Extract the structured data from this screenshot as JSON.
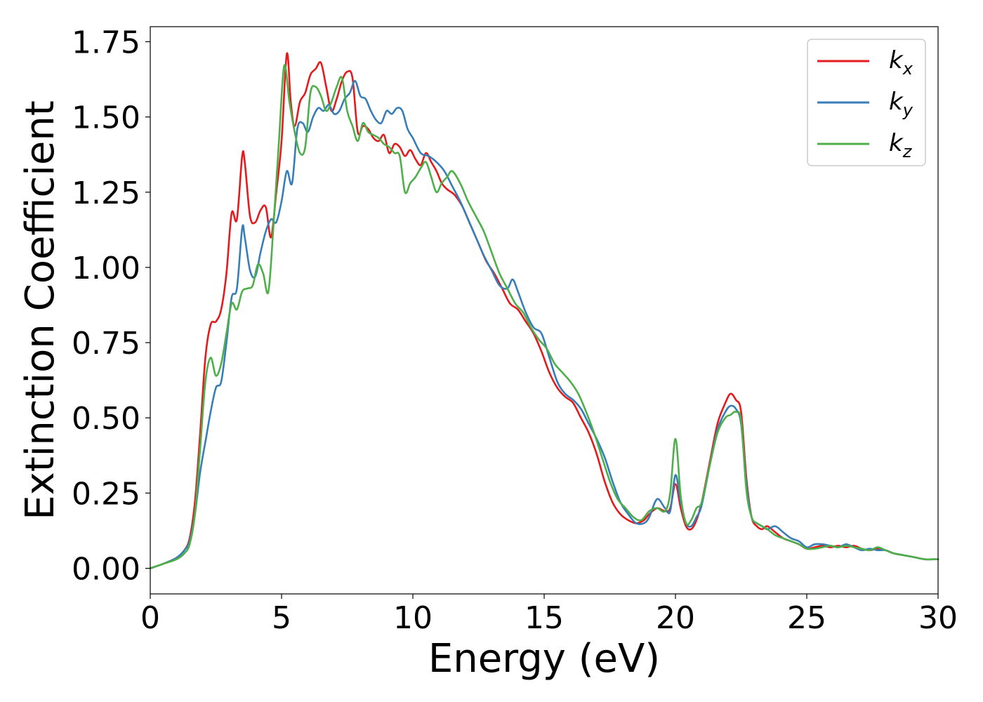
{
  "chart_data": {
    "type": "line",
    "title": "",
    "xlabel": "Energy (eV)",
    "ylabel": "Extinction Coefficient",
    "xlim": [
      0,
      30
    ],
    "ylim": [
      -0.085,
      1.8
    ],
    "xticks": [
      "0",
      "5",
      "10",
      "15",
      "20",
      "25",
      "30"
    ],
    "yticks": [
      "0.00",
      "0.25",
      "0.50",
      "0.75",
      "1.00",
      "1.25",
      "1.50",
      "1.75"
    ],
    "grid": false,
    "legend_position": "top-right",
    "series": [
      {
        "name": "k_x",
        "legend_base": "k",
        "legend_sub": "x",
        "color": "#e41a1c",
        "x": [
          0,
          0.5,
          1.0,
          1.3,
          1.5,
          1.7,
          1.9,
          2.1,
          2.3,
          2.5,
          2.7,
          2.9,
          3.1,
          3.3,
          3.5,
          3.6,
          3.8,
          4.0,
          4.2,
          4.4,
          4.6,
          4.8,
          5.0,
          5.2,
          5.35,
          5.5,
          5.7,
          5.9,
          6.1,
          6.3,
          6.5,
          6.7,
          6.9,
          7.1,
          7.3,
          7.5,
          7.7,
          7.9,
          8.1,
          8.3,
          8.5,
          8.7,
          8.9,
          9.1,
          9.3,
          9.5,
          9.7,
          9.9,
          10.1,
          10.3,
          10.5,
          10.7,
          10.9,
          11.1,
          11.3,
          11.6,
          11.9,
          12.2,
          12.5,
          12.8,
          13.1,
          13.4,
          13.7,
          14.0,
          14.3,
          14.6,
          14.9,
          15.2,
          15.5,
          15.8,
          16.1,
          16.4,
          16.7,
          17.0,
          17.3,
          17.6,
          17.9,
          18.2,
          18.5,
          18.8,
          19.0,
          19.3,
          19.6,
          19.8,
          20.0,
          20.2,
          20.4,
          20.6,
          20.8,
          21.0,
          21.3,
          21.6,
          21.9,
          22.1,
          22.3,
          22.5,
          22.7,
          22.9,
          23.1,
          23.3,
          23.5,
          23.8,
          24.1,
          24.4,
          24.7,
          25.0,
          25.3,
          25.6,
          25.9,
          26.2,
          26.5,
          26.8,
          27.1,
          27.4,
          27.7,
          28.0,
          28.3,
          28.6,
          28.9,
          29.2,
          29.5,
          29.8,
          30.0
        ],
        "y": [
          0,
          0.015,
          0.035,
          0.06,
          0.1,
          0.22,
          0.45,
          0.7,
          0.81,
          0.82,
          0.86,
          0.98,
          1.18,
          1.16,
          1.37,
          1.35,
          1.17,
          1.15,
          1.19,
          1.2,
          1.1,
          1.25,
          1.42,
          1.71,
          1.55,
          1.47,
          1.55,
          1.58,
          1.64,
          1.66,
          1.68,
          1.6,
          1.52,
          1.56,
          1.62,
          1.65,
          1.63,
          1.45,
          1.47,
          1.46,
          1.43,
          1.42,
          1.44,
          1.38,
          1.41,
          1.4,
          1.37,
          1.39,
          1.36,
          1.34,
          1.38,
          1.35,
          1.32,
          1.28,
          1.26,
          1.24,
          1.2,
          1.14,
          1.08,
          1.02,
          0.98,
          0.93,
          0.88,
          0.86,
          0.82,
          0.78,
          0.72,
          0.65,
          0.6,
          0.57,
          0.55,
          0.5,
          0.45,
          0.38,
          0.29,
          0.22,
          0.18,
          0.16,
          0.15,
          0.16,
          0.18,
          0.2,
          0.19,
          0.2,
          0.28,
          0.2,
          0.14,
          0.13,
          0.16,
          0.22,
          0.35,
          0.48,
          0.55,
          0.58,
          0.56,
          0.52,
          0.3,
          0.17,
          0.14,
          0.13,
          0.14,
          0.12,
          0.1,
          0.09,
          0.08,
          0.065,
          0.07,
          0.075,
          0.07,
          0.075,
          0.07,
          0.075,
          0.065,
          0.06,
          0.065,
          0.06,
          0.05,
          0.045,
          0.04,
          0.035,
          0.03,
          0.03,
          0.03
        ]
      },
      {
        "name": "k_y",
        "legend_base": "k",
        "legend_sub": "y",
        "color": "#377eb8",
        "x": [
          0,
          0.5,
          1.0,
          1.3,
          1.5,
          1.7,
          1.9,
          2.1,
          2.3,
          2.5,
          2.7,
          2.9,
          3.1,
          3.3,
          3.5,
          3.6,
          3.8,
          4.0,
          4.2,
          4.4,
          4.6,
          4.8,
          5.0,
          5.2,
          5.4,
          5.6,
          5.8,
          6.0,
          6.2,
          6.4,
          6.6,
          6.8,
          7.0,
          7.2,
          7.4,
          7.6,
          7.8,
          8.0,
          8.2,
          8.4,
          8.6,
          8.8,
          9.0,
          9.2,
          9.4,
          9.6,
          9.8,
          10.0,
          10.3,
          10.6,
          10.9,
          11.2,
          11.5,
          11.8,
          12.1,
          12.4,
          12.7,
          13.0,
          13.3,
          13.6,
          13.8,
          14.0,
          14.3,
          14.6,
          14.9,
          15.2,
          15.5,
          15.8,
          16.1,
          16.4,
          16.7,
          17.0,
          17.3,
          17.6,
          17.9,
          18.2,
          18.5,
          18.8,
          19.0,
          19.3,
          19.6,
          19.8,
          20.0,
          20.2,
          20.4,
          20.6,
          20.8,
          21.0,
          21.3,
          21.6,
          21.9,
          22.1,
          22.3,
          22.5,
          22.7,
          22.9,
          23.1,
          23.3,
          23.5,
          23.8,
          24.1,
          24.4,
          24.7,
          25.0,
          25.3,
          25.6,
          25.9,
          26.2,
          26.5,
          26.8,
          27.1,
          27.4,
          27.7,
          28.0,
          28.3,
          28.6,
          28.9,
          29.2,
          29.5,
          29.8,
          30.0
        ],
        "y": [
          0,
          0.015,
          0.035,
          0.06,
          0.09,
          0.18,
          0.32,
          0.42,
          0.52,
          0.6,
          0.62,
          0.75,
          0.9,
          0.93,
          1.13,
          1.1,
          0.99,
          0.97,
          1.05,
          1.12,
          1.16,
          1.15,
          1.22,
          1.32,
          1.28,
          1.46,
          1.48,
          1.45,
          1.5,
          1.53,
          1.52,
          1.54,
          1.51,
          1.52,
          1.56,
          1.58,
          1.62,
          1.57,
          1.56,
          1.52,
          1.49,
          1.48,
          1.52,
          1.51,
          1.53,
          1.52,
          1.46,
          1.43,
          1.38,
          1.37,
          1.35,
          1.32,
          1.27,
          1.22,
          1.16,
          1.1,
          1.04,
          0.99,
          0.94,
          0.93,
          0.96,
          0.92,
          0.85,
          0.8,
          0.78,
          0.7,
          0.62,
          0.58,
          0.56,
          0.53,
          0.48,
          0.43,
          0.37,
          0.29,
          0.22,
          0.18,
          0.15,
          0.15,
          0.17,
          0.23,
          0.2,
          0.19,
          0.31,
          0.22,
          0.15,
          0.14,
          0.17,
          0.21,
          0.34,
          0.46,
          0.52,
          0.54,
          0.53,
          0.48,
          0.28,
          0.17,
          0.15,
          0.14,
          0.13,
          0.14,
          0.12,
          0.1,
          0.09,
          0.07,
          0.08,
          0.08,
          0.075,
          0.07,
          0.08,
          0.07,
          0.06,
          0.065,
          0.06,
          0.06,
          0.05,
          0.045,
          0.04,
          0.035,
          0.03,
          0.03,
          0.03
        ]
      },
      {
        "name": "k_z",
        "legend_base": "k",
        "legend_sub": "z",
        "color": "#4daf4a",
        "x": [
          0,
          0.5,
          1.0,
          1.3,
          1.5,
          1.7,
          1.9,
          2.1,
          2.3,
          2.5,
          2.7,
          2.9,
          3.1,
          3.3,
          3.5,
          3.7,
          3.9,
          4.1,
          4.3,
          4.5,
          4.7,
          4.9,
          5.1,
          5.3,
          5.5,
          5.7,
          5.9,
          6.1,
          6.3,
          6.5,
          6.7,
          6.9,
          7.1,
          7.3,
          7.5,
          7.7,
          7.9,
          8.1,
          8.3,
          8.5,
          8.7,
          8.9,
          9.1,
          9.3,
          9.5,
          9.7,
          9.9,
          10.1,
          10.3,
          10.5,
          10.7,
          10.9,
          11.1,
          11.3,
          11.5,
          11.8,
          12.1,
          12.4,
          12.7,
          13.0,
          13.3,
          13.6,
          13.9,
          14.2,
          14.5,
          14.8,
          15.1,
          15.4,
          15.7,
          16.0,
          16.3,
          16.6,
          16.9,
          17.2,
          17.5,
          17.8,
          18.1,
          18.4,
          18.7,
          19.0,
          19.3,
          19.6,
          19.8,
          20.0,
          20.2,
          20.4,
          20.6,
          20.8,
          21.0,
          21.3,
          21.6,
          21.9,
          22.1,
          22.3,
          22.5,
          22.7,
          22.9,
          23.1,
          23.3,
          23.5,
          23.8,
          24.1,
          24.4,
          24.7,
          25.0,
          25.3,
          25.6,
          25.9,
          26.2,
          26.5,
          26.8,
          27.1,
          27.4,
          27.7,
          28.0,
          28.3,
          28.6,
          28.9,
          29.2,
          29.5,
          29.8,
          30.0
        ],
        "y": [
          0,
          0.015,
          0.03,
          0.05,
          0.08,
          0.18,
          0.4,
          0.62,
          0.7,
          0.64,
          0.68,
          0.78,
          0.88,
          0.86,
          0.92,
          0.93,
          0.94,
          1.01,
          0.98,
          0.92,
          1.15,
          1.42,
          1.67,
          1.55,
          1.45,
          1.38,
          1.4,
          1.58,
          1.6,
          1.57,
          1.52,
          1.55,
          1.6,
          1.63,
          1.52,
          1.47,
          1.42,
          1.48,
          1.45,
          1.44,
          1.43,
          1.41,
          1.4,
          1.38,
          1.37,
          1.25,
          1.28,
          1.3,
          1.33,
          1.35,
          1.3,
          1.25,
          1.28,
          1.3,
          1.32,
          1.28,
          1.22,
          1.17,
          1.12,
          1.05,
          0.98,
          0.93,
          0.88,
          0.85,
          0.8,
          0.76,
          0.73,
          0.68,
          0.65,
          0.62,
          0.58,
          0.52,
          0.45,
          0.37,
          0.29,
          0.23,
          0.2,
          0.17,
          0.16,
          0.19,
          0.2,
          0.19,
          0.25,
          0.43,
          0.24,
          0.15,
          0.16,
          0.2,
          0.22,
          0.34,
          0.45,
          0.5,
          0.51,
          0.52,
          0.49,
          0.26,
          0.17,
          0.15,
          0.14,
          0.13,
          0.11,
          0.1,
          0.09,
          0.08,
          0.065,
          0.065,
          0.07,
          0.075,
          0.07,
          0.075,
          0.07,
          0.065,
          0.06,
          0.07,
          0.06,
          0.05,
          0.045,
          0.04,
          0.035,
          0.03,
          0.03,
          0.03
        ]
      }
    ]
  }
}
